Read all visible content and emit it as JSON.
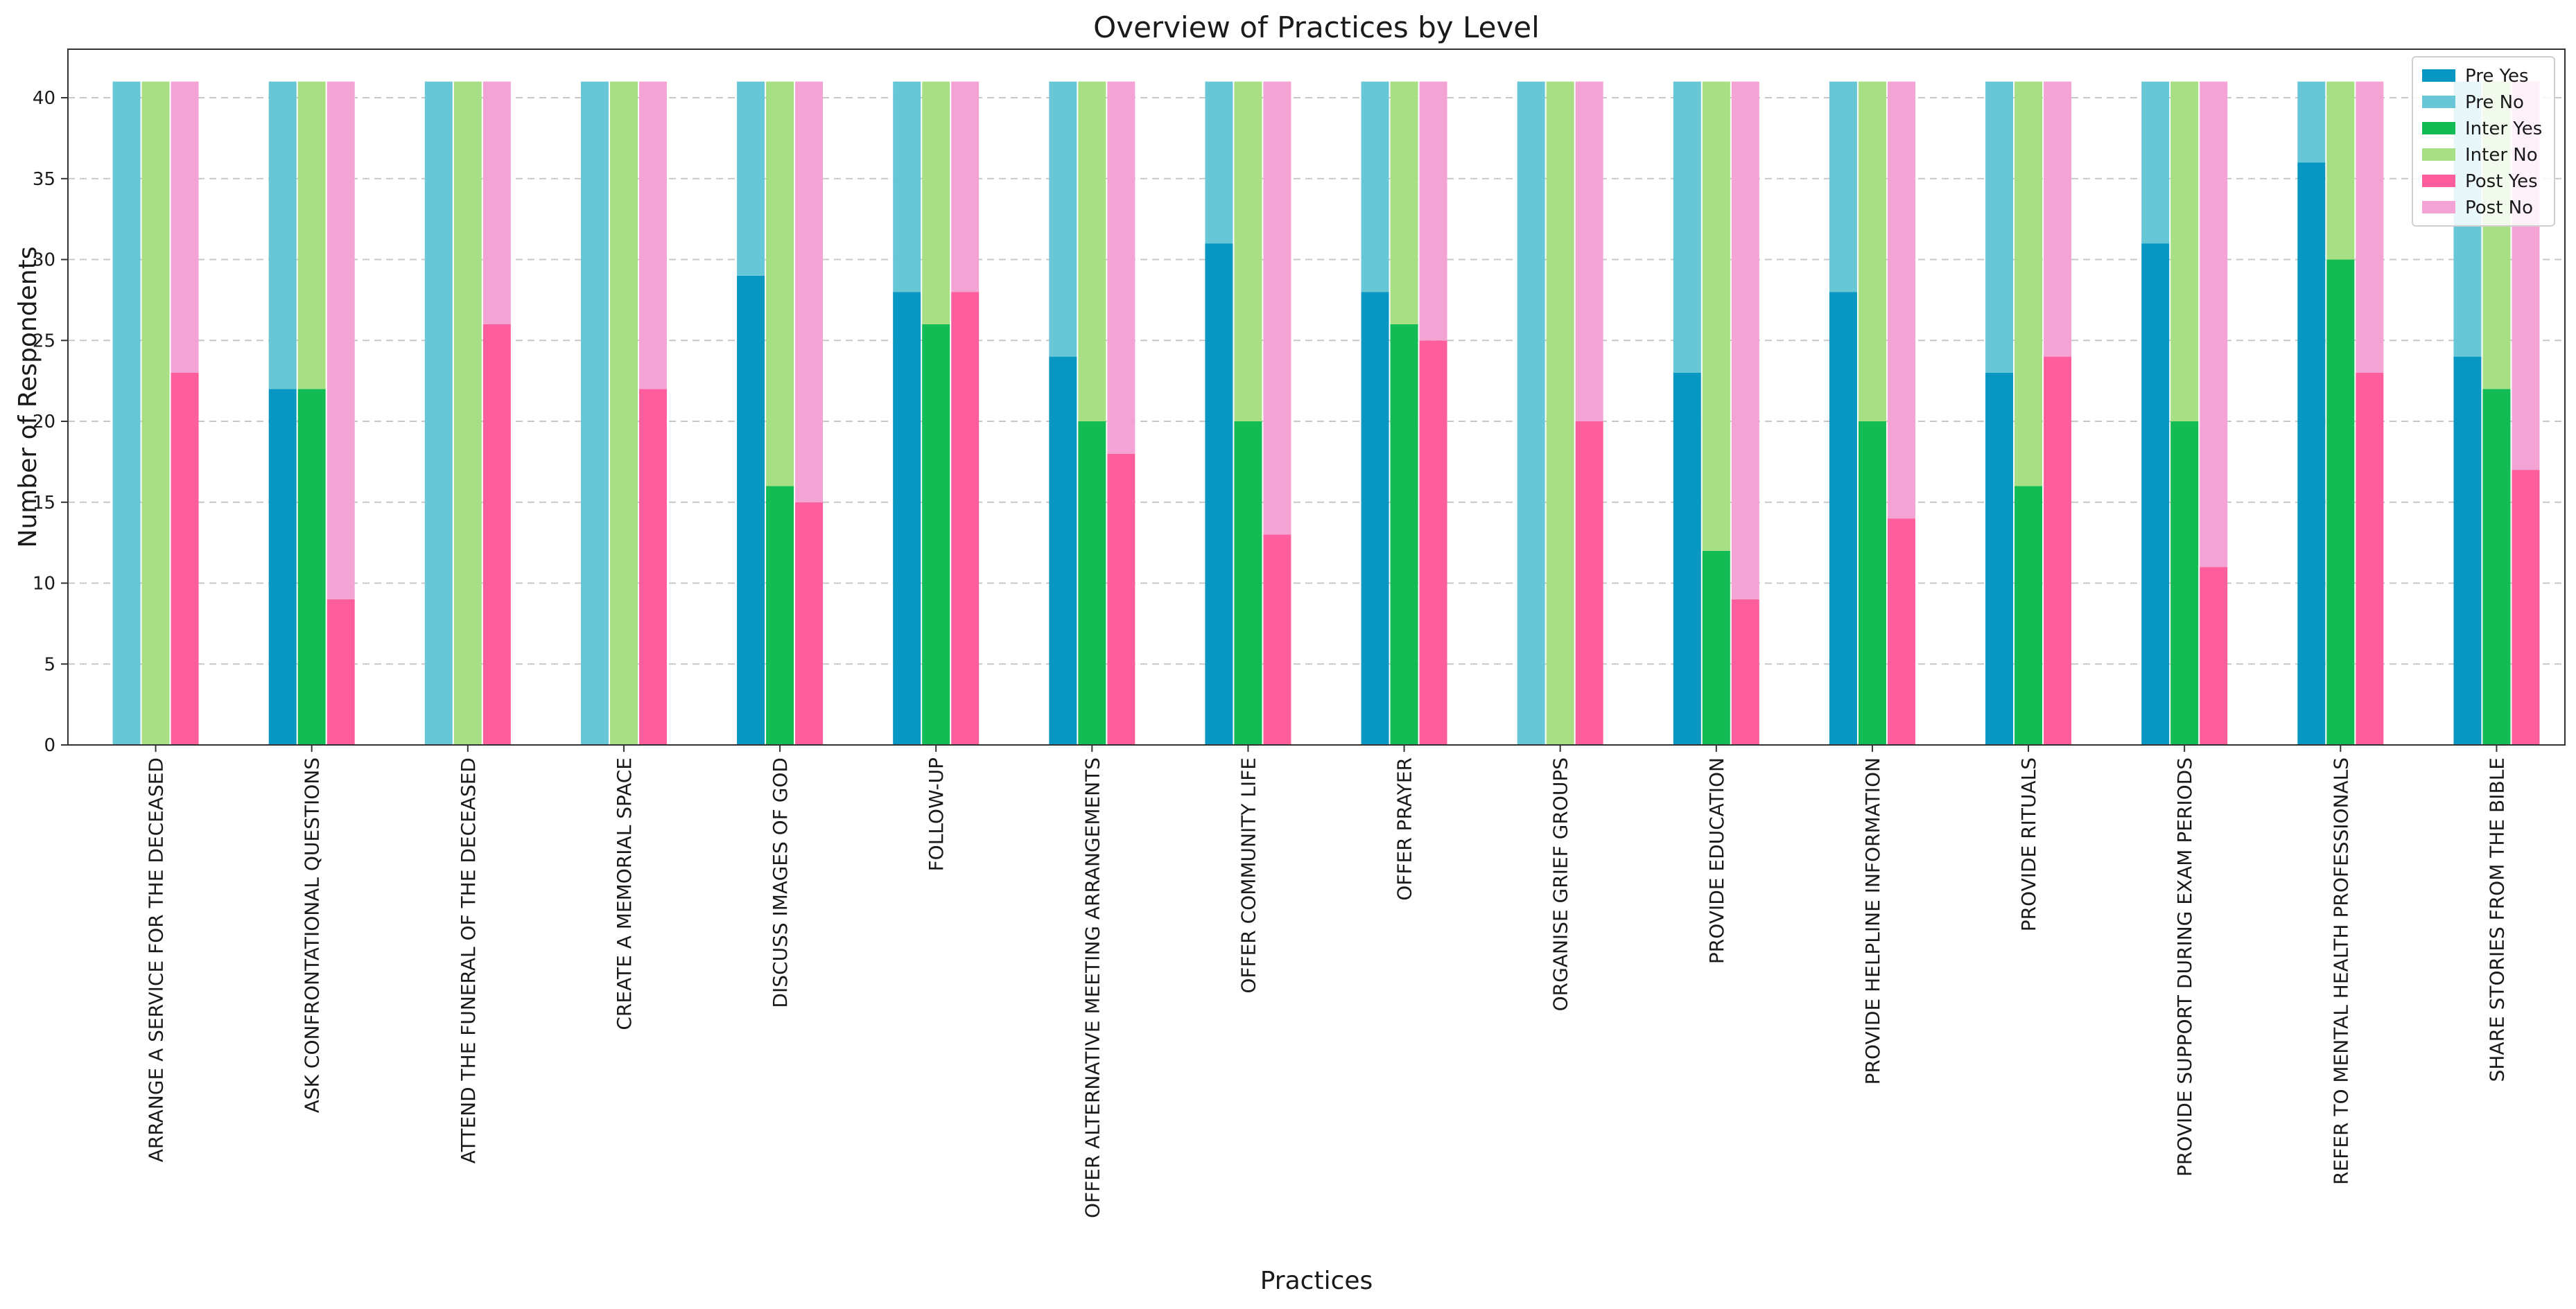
{
  "chart_data": {
    "type": "bar",
    "subtype": "grouped-stacked",
    "title": "Overview of Practices by Level",
    "xlabel": "Practices",
    "ylabel": "Number of Respondents",
    "ylim": [
      0,
      43
    ],
    "yticks": [
      0,
      5,
      10,
      15,
      20,
      25,
      30,
      35,
      40
    ],
    "grid": true,
    "legend_position": "top-right",
    "total_respondents": 41,
    "categories": [
      "ARRANGE A SERVICE FOR THE DECEASED",
      "ASK CONFRONTATIONAL QUESTIONS",
      "ATTEND THE FUNERAL OF THE DECEASED",
      "CREATE A MEMORIAL SPACE",
      "DISCUSS IMAGES OF GOD",
      "FOLLOW-UP",
      "OFFER ALTERNATIVE MEETING ARRANGEMENTS",
      "OFFER COMMUNITY LIFE",
      "OFFER PRAYER",
      "ORGANISE GRIEF GROUPS",
      "PROVIDE EDUCATION",
      "PROVIDE HELPLINE INFORMATION",
      "PROVIDE RITUALS",
      "PROVIDE SUPPORT DURING EXAM PERIODS",
      "REFER TO MENTAL HEALTH PROFESSIONALS",
      "SHARE STORIES FROM THE BIBLE"
    ],
    "series": [
      {
        "name": "Pre Yes",
        "level": "Pre",
        "answer": "Yes",
        "color": "#0797c2",
        "values": [
          0,
          22,
          0,
          0,
          29,
          28,
          24,
          31,
          28,
          0,
          23,
          28,
          23,
          31,
          36,
          24
        ]
      },
      {
        "name": "Pre No",
        "level": "Pre",
        "answer": "No",
        "color": "#68c7d7",
        "values": [
          41,
          19,
          41,
          41,
          12,
          13,
          17,
          10,
          13,
          41,
          18,
          13,
          18,
          10,
          5,
          17
        ]
      },
      {
        "name": "Inter Yes",
        "level": "Inter",
        "answer": "Yes",
        "color": "#12bb53",
        "values": [
          0,
          22,
          0,
          0,
          16,
          26,
          20,
          20,
          26,
          0,
          12,
          20,
          16,
          20,
          30,
          22
        ]
      },
      {
        "name": "Inter No",
        "level": "Inter",
        "answer": "No",
        "color": "#a9df84",
        "values": [
          41,
          19,
          41,
          41,
          25,
          15,
          21,
          21,
          15,
          41,
          29,
          21,
          25,
          21,
          11,
          19
        ]
      },
      {
        "name": "Post Yes",
        "level": "Post",
        "answer": "Yes",
        "color": "#fe5f9c",
        "values": [
          23,
          9,
          26,
          22,
          15,
          28,
          18,
          13,
          25,
          20,
          9,
          14,
          24,
          11,
          23,
          17
        ]
      },
      {
        "name": "Post No",
        "level": "Post",
        "answer": "No",
        "color": "#f3a3d4",
        "values": [
          18,
          32,
          15,
          19,
          26,
          13,
          23,
          28,
          16,
          21,
          32,
          27,
          17,
          30,
          18,
          24
        ]
      }
    ]
  }
}
